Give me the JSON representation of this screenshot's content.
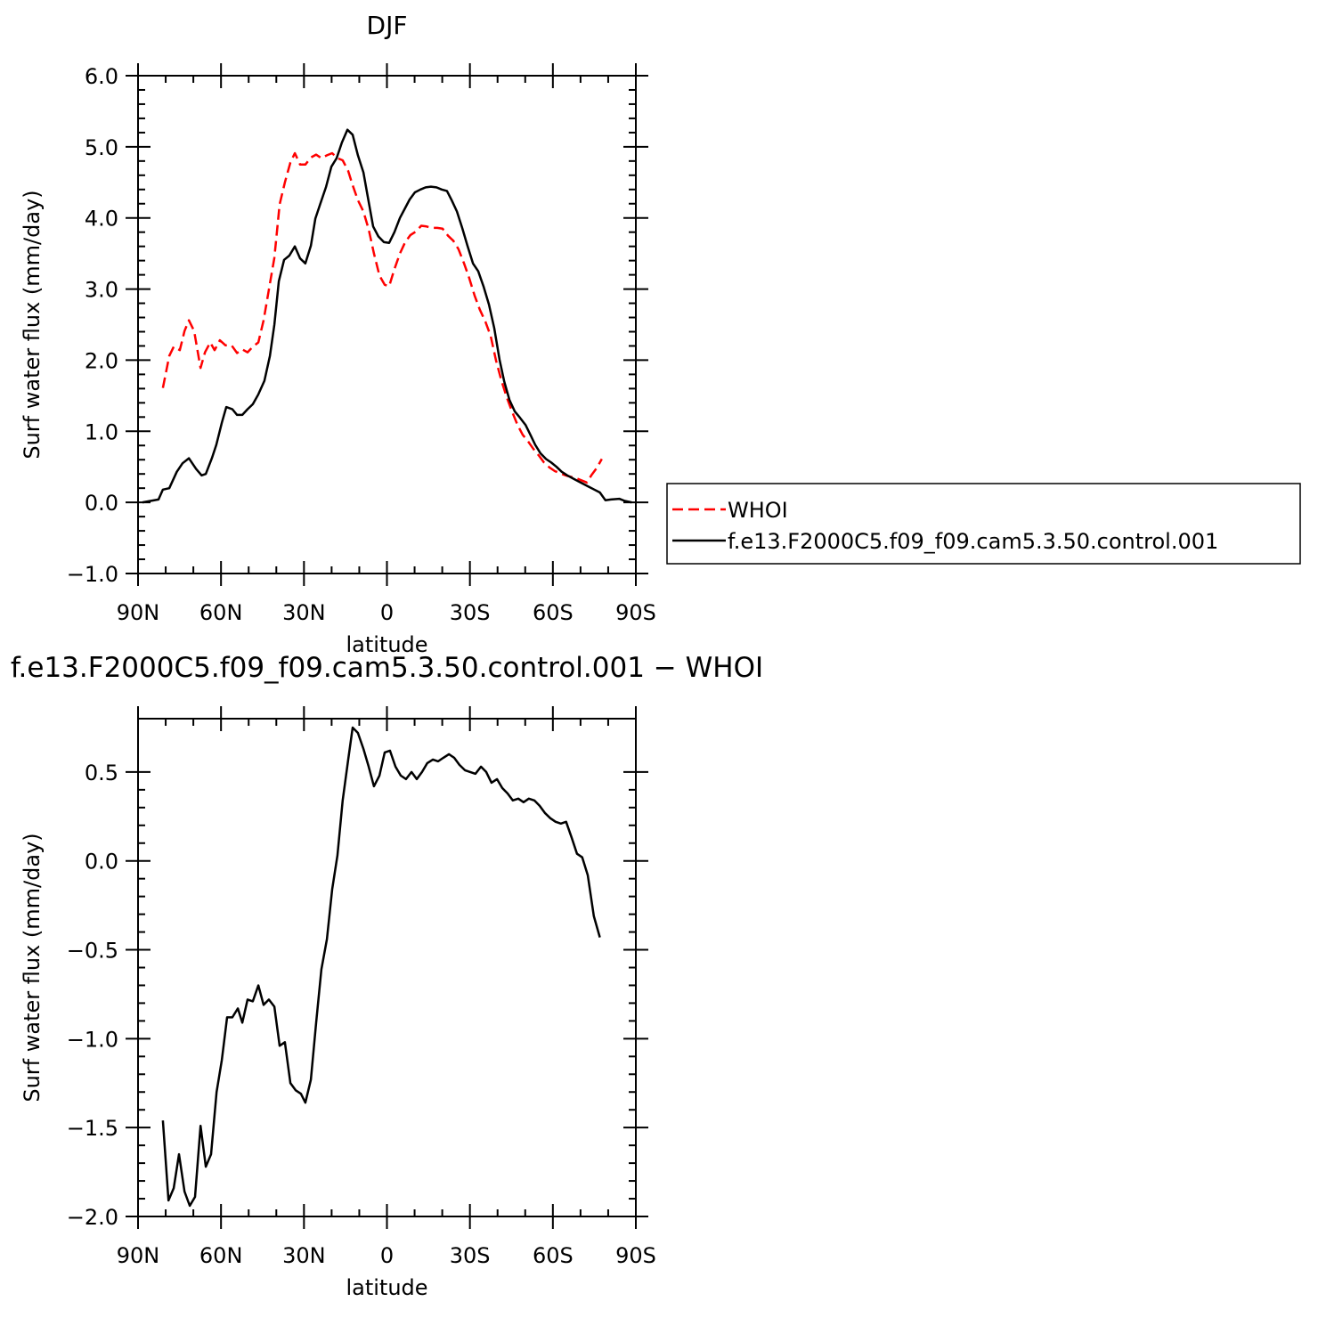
{
  "chart_data": [
    {
      "type": "line",
      "title": "DJF",
      "xlabel": "latitude",
      "ylabel": "Surf water flux (mm/day)",
      "xlim": [
        90,
        -90
      ],
      "xticks": [
        {
          "value": 90,
          "label": "90N"
        },
        {
          "value": 60,
          "label": "60N"
        },
        {
          "value": 30,
          "label": "30N"
        },
        0,
        {
          "value": -30,
          "label": "30S"
        },
        {
          "value": -60,
          "label": "60S"
        },
        {
          "value": -90,
          "label": "90S"
        }
      ],
      "ylim": [
        -1,
        6
      ],
      "yticks": [
        {
          "value": -1,
          "label": "−1.0"
        },
        {
          "value": 0,
          "label": "0.0"
        },
        {
          "value": 1,
          "label": "1.0"
        },
        {
          "value": 2,
          "label": "2.0"
        },
        {
          "value": 3,
          "label": "3.0"
        },
        {
          "value": 4,
          "label": "4.0"
        },
        {
          "value": 5,
          "label": "5.0"
        },
        {
          "value": 6,
          "label": "6.0"
        }
      ],
      "legend": "outside-right",
      "series": [
        {
          "name": "WHOI",
          "color": "#ff0000",
          "dash": true,
          "x": [
            81,
            78.7,
            77.1,
            74.9,
            73.2,
            71.6,
            69.7,
            67.4,
            65.8,
            63.9,
            62.3,
            60.4,
            58.4,
            56.2,
            54.2,
            52.3,
            50.4,
            48.5,
            46.5,
            44.6,
            42.7,
            40.7,
            38.8,
            36.9,
            34.9,
            33.3,
            31.4,
            29.5,
            27.5,
            25.6,
            23.7,
            21.7,
            19.8,
            17.9,
            16,
            14,
            12.4,
            10.5,
            8.5,
            6.6,
            4.7,
            2.7,
            0.8,
            -0.8,
            -2.7,
            -4.7,
            -6.6,
            -8.5,
            -10.5,
            -12.4,
            -14.3,
            -16.3,
            -18.2,
            -20.1,
            -22.1,
            -24,
            -25.9,
            -27.9,
            -29.8,
            -31.7,
            -33.6,
            -35.6,
            -37.5,
            -39.4,
            -41.4,
            -43.3,
            -45.2,
            -47.2,
            -49.1,
            -51,
            -53,
            -54.9,
            -56.8,
            -58.8,
            -60.7,
            -62.6,
            -64.6,
            -66.5,
            -68.4,
            -70.4,
            -72.3,
            -73.9,
            -75.8,
            -77.7
          ],
          "values": [
            1.61,
            2.06,
            2.19,
            2.14,
            2.41,
            2.56,
            2.41,
            1.89,
            2.11,
            2.25,
            2.14,
            2.28,
            2.21,
            2.21,
            2.1,
            2.15,
            2.11,
            2.19,
            2.25,
            2.56,
            2.99,
            3.44,
            4.19,
            4.5,
            4.78,
            4.91,
            4.75,
            4.75,
            4.85,
            4.89,
            4.84,
            4.88,
            4.91,
            4.84,
            4.81,
            4.66,
            4.46,
            4.25,
            4.09,
            3.84,
            3.5,
            3.19,
            3.06,
            3.04,
            3.28,
            3.5,
            3.66,
            3.76,
            3.81,
            3.89,
            3.88,
            3.86,
            3.86,
            3.85,
            3.75,
            3.68,
            3.56,
            3.36,
            3.15,
            2.91,
            2.71,
            2.54,
            2.34,
            2,
            1.71,
            1.48,
            1.28,
            1.09,
            0.95,
            0.86,
            0.75,
            0.66,
            0.56,
            0.49,
            0.44,
            0.41,
            0.38,
            0.36,
            0.34,
            0.31,
            0.28,
            0.38,
            0.48,
            0.61
          ]
        },
        {
          "name": "f.e13.F2000C5.f09_f09.cam5.3.50.control.001",
          "color": "#000000",
          "x": [
            88.4,
            82.6,
            81,
            78.7,
            76,
            73.9,
            71.6,
            69,
            67,
            65.5,
            63.3,
            61.7,
            59.7,
            58.1,
            55.9,
            54.2,
            52.3,
            50.4,
            48.5,
            46.5,
            44.3,
            42.3,
            40.7,
            39.1,
            37.2,
            35.3,
            33.3,
            31.4,
            29.5,
            27.5,
            25.9,
            24,
            22,
            20.1,
            18.2,
            16.3,
            14.3,
            12.4,
            10.5,
            8.5,
            6.9,
            5,
            3.1,
            1.1,
            -0.8,
            -2.7,
            -4.7,
            -6.6,
            -8.2,
            -10.1,
            -12.1,
            -14,
            -15.9,
            -17.9,
            -19.8,
            -21.7,
            -23.4,
            -25.3,
            -27.2,
            -29.1,
            -31.1,
            -33,
            -34.9,
            -36.9,
            -38.8,
            -40.7,
            -42.4,
            -44.3,
            -46.2,
            -48.1,
            -50.1,
            -52,
            -53.6,
            -55.5,
            -57.5,
            -59.4,
            -61.3,
            -63.2,
            -65.2,
            -67.1,
            -69,
            -71,
            -73,
            -75,
            -77,
            -79,
            -81,
            -84,
            -86,
            -88.5
          ],
          "values": [
            0,
            0.04,
            0.18,
            0.2,
            0.43,
            0.55,
            0.62,
            0.47,
            0.38,
            0.4,
            0.62,
            0.81,
            1.12,
            1.34,
            1.31,
            1.23,
            1.23,
            1.31,
            1.38,
            1.52,
            1.71,
            2.06,
            2.5,
            3.11,
            3.41,
            3.47,
            3.6,
            3.43,
            3.36,
            3.61,
            3.99,
            4.21,
            4.44,
            4.72,
            4.84,
            5.06,
            5.24,
            5.17,
            4.88,
            4.64,
            4.29,
            3.88,
            3.74,
            3.66,
            3.65,
            3.8,
            4,
            4.14,
            4.26,
            4.36,
            4.4,
            4.43,
            4.44,
            4.43,
            4.4,
            4.38,
            4.25,
            4.09,
            3.86,
            3.61,
            3.36,
            3.25,
            3.04,
            2.78,
            2.45,
            2.01,
            1.7,
            1.44,
            1.28,
            1.19,
            1.09,
            0.94,
            0.81,
            0.69,
            0.61,
            0.56,
            0.5,
            0.43,
            0.38,
            0.34,
            0.3,
            0.26,
            0.22,
            0.18,
            0.14,
            0.03,
            0.04,
            0.05,
            0.02,
            0
          ]
        }
      ]
    },
    {
      "type": "line",
      "title": "f.e13.F2000C5.f09_f09.cam5.3.50.control.001 − WHOI",
      "xlabel": "latitude",
      "ylabel": "Surf water flux (mm/day)",
      "xlim": [
        90,
        -90
      ],
      "xticks": [
        {
          "value": 90,
          "label": "90N"
        },
        {
          "value": 60,
          "label": "60N"
        },
        {
          "value": 30,
          "label": "30N"
        },
        0,
        {
          "value": -30,
          "label": "30S"
        },
        {
          "value": -60,
          "label": "60S"
        },
        {
          "value": -90,
          "label": "90S"
        }
      ],
      "ylim": [
        -2,
        0.8
      ],
      "yticks": [
        {
          "value": -2,
          "label": "−2.0"
        },
        {
          "value": -1.5,
          "label": "−1.5"
        },
        {
          "value": -1,
          "label": "−1.0"
        },
        {
          "value": -0.5,
          "label": "−0.5"
        },
        {
          "value": 0,
          "label": "0.0"
        },
        0.5
      ],
      "series": [
        {
          "color": "#000000",
          "x": [
            81,
            79,
            77.1,
            75.2,
            73.2,
            71.3,
            69.4,
            67.4,
            65.5,
            63.6,
            61.6,
            59.7,
            57.8,
            55.9,
            53.9,
            52.3,
            50.4,
            48.5,
            46.5,
            44.6,
            42.7,
            40.7,
            38.8,
            36.9,
            34.9,
            33,
            31.1,
            29.5,
            27.5,
            25.6,
            23.7,
            21.7,
            19.8,
            17.9,
            16,
            14,
            12.4,
            10.5,
            8.5,
            6.6,
            4.7,
            2.7,
            0.8,
            -1.1,
            -3.1,
            -5,
            -6.9,
            -8.9,
            -10.8,
            -12.7,
            -14.6,
            -16.6,
            -18.5,
            -20.4,
            -22.4,
            -24.3,
            -26.2,
            -28.2,
            -30.1,
            -32,
            -34,
            -35.9,
            -37.8,
            -39.8,
            -41.7,
            -43.6,
            -45.5,
            -47.5,
            -49.4,
            -51.3,
            -53.3,
            -55.2,
            -57.1,
            -59.1,
            -61,
            -62.9,
            -64.8,
            -66.8,
            -68.7,
            -70.6,
            -72.6,
            -74.8,
            -77
          ],
          "values": [
            -1.46,
            -1.91,
            -1.84,
            -1.65,
            -1.86,
            -1.94,
            -1.89,
            -1.49,
            -1.72,
            -1.65,
            -1.3,
            -1.12,
            -0.88,
            -0.88,
            -0.83,
            -0.91,
            -0.78,
            -0.79,
            -0.7,
            -0.81,
            -0.78,
            -0.82,
            -1.04,
            -1.02,
            -1.25,
            -1.29,
            -1.31,
            -1.36,
            -1.23,
            -0.91,
            -0.61,
            -0.44,
            -0.16,
            0.03,
            0.34,
            0.57,
            0.75,
            0.72,
            0.63,
            0.53,
            0.42,
            0.48,
            0.61,
            0.62,
            0.53,
            0.48,
            0.46,
            0.5,
            0.46,
            0.5,
            0.55,
            0.57,
            0.56,
            0.58,
            0.6,
            0.58,
            0.54,
            0.51,
            0.5,
            0.49,
            0.53,
            0.5,
            0.44,
            0.46,
            0.41,
            0.38,
            0.34,
            0.35,
            0.33,
            0.35,
            0.34,
            0.31,
            0.27,
            0.24,
            0.22,
            0.21,
            0.22,
            0.13,
            0.04,
            0.02,
            -0.08,
            -0.31,
            -0.43
          ]
        }
      ]
    }
  ]
}
